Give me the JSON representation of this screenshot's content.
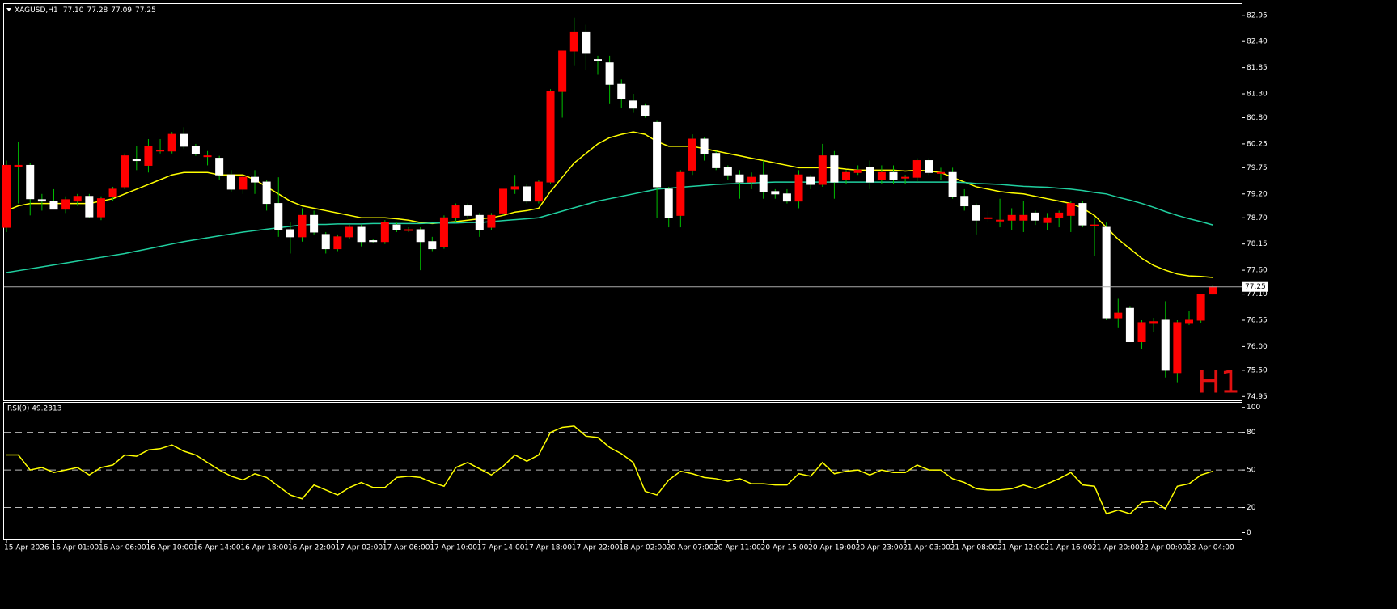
{
  "chart_data": [
    {
      "type": "candlestick",
      "title": "XAGUSD,H1",
      "info": [
        "77.10",
        "77.28",
        "77.09",
        "77.25"
      ],
      "categories": [
        "15 Apr 2026",
        null,
        null,
        null,
        "16 Apr 01:00",
        null,
        null,
        null,
        "16 Apr 06:00",
        null,
        null,
        null,
        "16 Apr 10:00",
        null,
        null,
        null,
        "16 Apr 14:00",
        null,
        null,
        null,
        "16 Apr 18:00",
        null,
        null,
        null,
        "16 Apr 22:00",
        null,
        null,
        null,
        "17 Apr 02:00",
        null,
        null,
        null,
        "17 Apr 06:00",
        null,
        null,
        null,
        "17 Apr 10:00",
        null,
        null,
        null,
        "17 Apr 14:00",
        null,
        null,
        null,
        "17 Apr 18:00",
        null,
        null,
        null,
        "17 Apr 22:00",
        null,
        null,
        null,
        "18 Apr 02:00",
        null,
        null,
        null,
        "20 Apr 07:00",
        null,
        null,
        null,
        "20 Apr 11:00",
        null,
        null,
        null,
        "20 Apr 15:00",
        null,
        null,
        null,
        "20 Apr 19:00",
        null,
        null,
        null,
        "20 Apr 23:00",
        null,
        null,
        null,
        "21 Apr 03:00",
        null,
        null,
        null,
        "21 Apr 08:00",
        null,
        null,
        null,
        "21 Apr 12:00",
        null,
        null,
        null,
        "21 Apr 16:00",
        null,
        null,
        null,
        "21 Apr 20:00",
        null,
        null,
        null,
        "22 Apr 00:00",
        null,
        null,
        null,
        "22 Apr 04:00",
        null,
        null
      ],
      "ohlc": [
        [
          78.5,
          79.9,
          78.4,
          79.8
        ],
        [
          79.78,
          80.3,
          79.0,
          79.8
        ],
        [
          79.8,
          79.85,
          78.75,
          79.1
        ],
        [
          79.08,
          79.2,
          78.85,
          79.05
        ],
        [
          79.05,
          79.3,
          78.9,
          78.88
        ],
        [
          78.88,
          79.15,
          78.8,
          79.08
        ],
        [
          79.05,
          79.2,
          78.95,
          79.15
        ],
        [
          79.15,
          79.2,
          78.7,
          78.72
        ],
        [
          78.72,
          79.15,
          78.65,
          79.1
        ],
        [
          79.15,
          79.35,
          79.05,
          79.3
        ],
        [
          79.35,
          80.05,
          79.3,
          80.0
        ],
        [
          79.92,
          80.2,
          79.7,
          79.9
        ],
        [
          79.8,
          80.35,
          79.65,
          80.2
        ],
        [
          80.1,
          80.35,
          80.05,
          80.12
        ],
        [
          80.1,
          80.5,
          80.05,
          80.45
        ],
        [
          80.45,
          80.6,
          80.15,
          80.2
        ],
        [
          80.2,
          80.25,
          80.0,
          80.05
        ],
        [
          80.0,
          80.1,
          79.8,
          80.0
        ],
        [
          79.95,
          80.0,
          79.5,
          79.6
        ],
        [
          79.6,
          79.7,
          79.25,
          79.3
        ],
        [
          79.3,
          79.6,
          79.2,
          79.55
        ],
        [
          79.55,
          79.7,
          79.2,
          79.45
        ],
        [
          79.45,
          79.5,
          78.85,
          79.0
        ],
        [
          79.0,
          79.55,
          78.3,
          78.45
        ],
        [
          78.45,
          78.6,
          77.95,
          78.3
        ],
        [
          78.3,
          78.9,
          78.2,
          78.75
        ],
        [
          78.75,
          78.85,
          78.35,
          78.4
        ],
        [
          78.35,
          78.4,
          77.95,
          78.05
        ],
        [
          78.05,
          78.35,
          78.0,
          78.3
        ],
        [
          78.3,
          78.55,
          78.25,
          78.5
        ],
        [
          78.5,
          78.55,
          78.1,
          78.2
        ],
        [
          78.22,
          78.25,
          78.18,
          78.2
        ],
        [
          78.2,
          78.65,
          78.15,
          78.6
        ],
        [
          78.55,
          78.6,
          78.4,
          78.45
        ],
        [
          78.45,
          78.5,
          78.4,
          78.45
        ],
        [
          78.45,
          78.5,
          77.6,
          78.2
        ],
        [
          78.2,
          78.3,
          78.0,
          78.05
        ],
        [
          78.1,
          78.75,
          78.05,
          78.7
        ],
        [
          78.7,
          79.0,
          78.6,
          78.95
        ],
        [
          78.95,
          79.0,
          78.7,
          78.75
        ],
        [
          78.75,
          78.8,
          78.3,
          78.45
        ],
        [
          78.5,
          78.8,
          78.45,
          78.75
        ],
        [
          78.8,
          79.3,
          78.75,
          79.3
        ],
        [
          79.3,
          79.6,
          79.2,
          79.35
        ],
        [
          79.35,
          79.4,
          79.0,
          79.05
        ],
        [
          79.05,
          79.5,
          79.0,
          79.45
        ],
        [
          79.45,
          81.4,
          79.4,
          81.35
        ],
        [
          81.35,
          82.2,
          80.8,
          82.2
        ],
        [
          82.2,
          82.9,
          81.9,
          82.6
        ],
        [
          82.6,
          82.75,
          81.8,
          82.15
        ],
        [
          82.02,
          82.1,
          81.7,
          82.0
        ],
        [
          81.95,
          82.1,
          81.1,
          81.5
        ],
        [
          81.5,
          81.6,
          81.0,
          81.2
        ],
        [
          81.15,
          81.3,
          80.9,
          81.0
        ],
        [
          81.05,
          81.1,
          80.8,
          80.85
        ],
        [
          80.7,
          80.75,
          78.7,
          79.35
        ],
        [
          79.3,
          79.35,
          78.5,
          78.7
        ],
        [
          78.75,
          79.7,
          78.5,
          79.65
        ],
        [
          79.7,
          80.45,
          79.6,
          80.35
        ],
        [
          80.35,
          80.4,
          79.9,
          80.05
        ],
        [
          80.05,
          80.1,
          79.7,
          79.75
        ],
        [
          79.75,
          79.8,
          79.5,
          79.6
        ],
        [
          79.6,
          79.7,
          79.1,
          79.45
        ],
        [
          79.45,
          79.65,
          79.3,
          79.55
        ],
        [
          79.6,
          79.9,
          79.1,
          79.25
        ],
        [
          79.25,
          79.3,
          79.1,
          79.2
        ],
        [
          79.2,
          79.3,
          79.0,
          79.05
        ],
        [
          79.05,
          79.7,
          78.9,
          79.6
        ],
        [
          79.55,
          79.6,
          79.3,
          79.4
        ],
        [
          79.4,
          80.25,
          79.35,
          80.0
        ],
        [
          80.0,
          80.1,
          79.1,
          79.45
        ],
        [
          79.5,
          79.7,
          79.4,
          79.65
        ],
        [
          79.65,
          79.8,
          79.6,
          79.7
        ],
        [
          79.75,
          79.9,
          79.3,
          79.45
        ],
        [
          79.5,
          79.8,
          79.4,
          79.65
        ],
        [
          79.65,
          79.8,
          79.4,
          79.5
        ],
        [
          79.55,
          79.6,
          79.4,
          79.55
        ],
        [
          79.55,
          79.95,
          79.45,
          79.9
        ],
        [
          79.9,
          79.95,
          79.6,
          79.65
        ],
        [
          79.65,
          79.75,
          79.5,
          79.65
        ],
        [
          79.65,
          79.75,
          79.1,
          79.15
        ],
        [
          79.15,
          79.3,
          78.85,
          78.95
        ],
        [
          78.95,
          79.0,
          78.35,
          78.65
        ],
        [
          78.7,
          78.85,
          78.6,
          78.7
        ],
        [
          78.65,
          79.1,
          78.5,
          78.65
        ],
        [
          78.65,
          78.9,
          78.45,
          78.75
        ],
        [
          78.65,
          79.05,
          78.4,
          78.75
        ],
        [
          78.8,
          78.85,
          78.55,
          78.65
        ],
        [
          78.6,
          78.8,
          78.45,
          78.7
        ],
        [
          78.7,
          78.85,
          78.5,
          78.8
        ],
        [
          78.75,
          79.05,
          78.4,
          79.0
        ],
        [
          79.0,
          79.05,
          78.5,
          78.55
        ],
        [
          78.55,
          78.7,
          77.9,
          78.55
        ],
        [
          78.5,
          78.6,
          76.55,
          76.6
        ],
        [
          76.6,
          77.0,
          76.4,
          76.7
        ],
        [
          76.8,
          76.85,
          76.1,
          76.1
        ],
        [
          76.1,
          76.55,
          75.95,
          76.5
        ],
        [
          76.5,
          76.6,
          76.3,
          76.52
        ],
        [
          76.55,
          76.95,
          75.35,
          75.5
        ],
        [
          75.45,
          76.55,
          75.25,
          76.5
        ],
        [
          76.5,
          76.75,
          76.45,
          76.55
        ],
        [
          76.55,
          77.1,
          76.5,
          77.1
        ],
        [
          77.1,
          77.28,
          77.09,
          77.25
        ]
      ],
      "up_color": "#ff0000",
      "down_color": "#ffffff",
      "wick_color": "#00c000",
      "lines": [
        {
          "color": "#ffff00",
          "values": [
            78.85,
            78.95,
            79.0,
            79.0,
            79.0,
            79.0,
            79.0,
            79.0,
            79.05,
            79.1,
            79.2,
            79.3,
            79.4,
            79.5,
            79.6,
            79.65,
            79.65,
            79.65,
            79.6,
            79.6,
            79.6,
            79.5,
            79.35,
            79.2,
            79.05,
            78.95,
            78.9,
            78.85,
            78.8,
            78.75,
            78.7,
            78.7,
            78.7,
            78.68,
            78.65,
            78.6,
            78.58,
            78.6,
            78.62,
            78.65,
            78.68,
            78.7,
            78.75,
            78.82,
            78.85,
            78.9,
            79.25,
            79.55,
            79.85,
            80.05,
            80.25,
            80.38,
            80.45,
            80.5,
            80.45,
            80.3,
            80.2,
            80.2,
            80.2,
            80.15,
            80.1,
            80.05,
            80.0,
            79.95,
            79.9,
            79.85,
            79.8,
            79.75,
            79.75,
            79.75,
            79.75,
            79.72,
            79.7,
            79.7,
            79.7,
            79.7,
            79.68,
            79.7,
            79.68,
            79.65,
            79.55,
            79.45,
            79.35,
            79.3,
            79.25,
            79.22,
            79.2,
            79.15,
            79.1,
            79.05,
            79.0,
            78.9,
            78.75,
            78.5,
            78.25,
            78.05,
            77.85,
            77.7,
            77.6,
            77.52,
            77.48,
            77.47,
            77.45
          ]
        },
        {
          "color": "#20d0a0",
          "values": [
            77.55,
            77.59,
            77.63,
            77.67,
            77.71,
            77.75,
            77.79,
            77.83,
            77.87,
            77.91,
            77.95,
            78.0,
            78.05,
            78.1,
            78.15,
            78.2,
            78.24,
            78.28,
            78.32,
            78.36,
            78.4,
            78.43,
            78.46,
            78.49,
            78.52,
            78.55,
            78.56,
            78.56,
            78.57,
            78.57,
            78.57,
            78.58,
            78.58,
            78.58,
            78.58,
            78.58,
            78.59,
            78.59,
            78.59,
            78.6,
            78.6,
            78.62,
            78.64,
            78.66,
            78.68,
            78.7,
            78.77,
            78.84,
            78.91,
            78.98,
            79.05,
            79.1,
            79.15,
            79.2,
            79.25,
            79.3,
            79.32,
            79.34,
            79.36,
            79.38,
            79.4,
            79.41,
            79.42,
            79.43,
            79.44,
            79.45,
            79.45,
            79.45,
            79.45,
            79.45,
            79.45,
            79.45,
            79.45,
            79.45,
            79.45,
            79.45,
            79.45,
            79.45,
            79.45,
            79.45,
            79.45,
            79.44,
            79.42,
            79.41,
            79.4,
            79.38,
            79.36,
            79.35,
            79.34,
            79.32,
            79.3,
            79.27,
            79.23,
            79.2,
            79.13,
            79.07,
            79.0,
            78.92,
            78.83,
            78.75,
            78.68,
            78.62,
            78.55
          ]
        }
      ],
      "ylim": [
        74.87,
        83.15
      ],
      "yticks": [
        82.95,
        {
          "value": 82.4,
          "label": "82.40"
        },
        81.85,
        {
          "value": 81.3,
          "label": "81.30"
        },
        {
          "value": 80.8,
          "label": "80.80"
        },
        80.25,
        79.75,
        {
          "value": 79.2,
          "label": "79.20"
        },
        {
          "value": 78.7,
          "label": "78.70"
        },
        78.15,
        {
          "value": 77.6,
          "label": "77.60"
        },
        {
          "value": 77.1,
          "label": "77.10"
        },
        76.55,
        {
          "value": 76,
          "label": "76.00"
        },
        {
          "value": 75.5,
          "label": "75.50"
        },
        74.95
      ],
      "current_price": 77.25,
      "annotation": "H1"
    },
    {
      "type": "line",
      "title": "RSI(9) 49.2313",
      "color": "#ffff00",
      "values": [
        62,
        62,
        50,
        52,
        48,
        50,
        52,
        46,
        52,
        54,
        62,
        61,
        66,
        67,
        70,
        65,
        62,
        56,
        50,
        45,
        42,
        47,
        44,
        37,
        30,
        27,
        38,
        34,
        30,
        36,
        40,
        36,
        36,
        44,
        45,
        44,
        40,
        37,
        52,
        56,
        51,
        46,
        53,
        62,
        57,
        62,
        80,
        84,
        85,
        77,
        76,
        68,
        63,
        56,
        33,
        30,
        42,
        49,
        47,
        44,
        43,
        41,
        43,
        39,
        39,
        38,
        38,
        47,
        45,
        56,
        47,
        49,
        50,
        46,
        50,
        48,
        48,
        54,
        50,
        50,
        43,
        40,
        35,
        34,
        34,
        35,
        38,
        35,
        39,
        43,
        48,
        38,
        37,
        15,
        18,
        15,
        24,
        25,
        19,
        37,
        39,
        46,
        49
      ],
      "ylim": [
        -5.5,
        103.7
      ],
      "yticks": [
        0,
        20,
        50,
        80,
        100
      ],
      "levels": [
        20,
        50,
        80
      ]
    }
  ]
}
